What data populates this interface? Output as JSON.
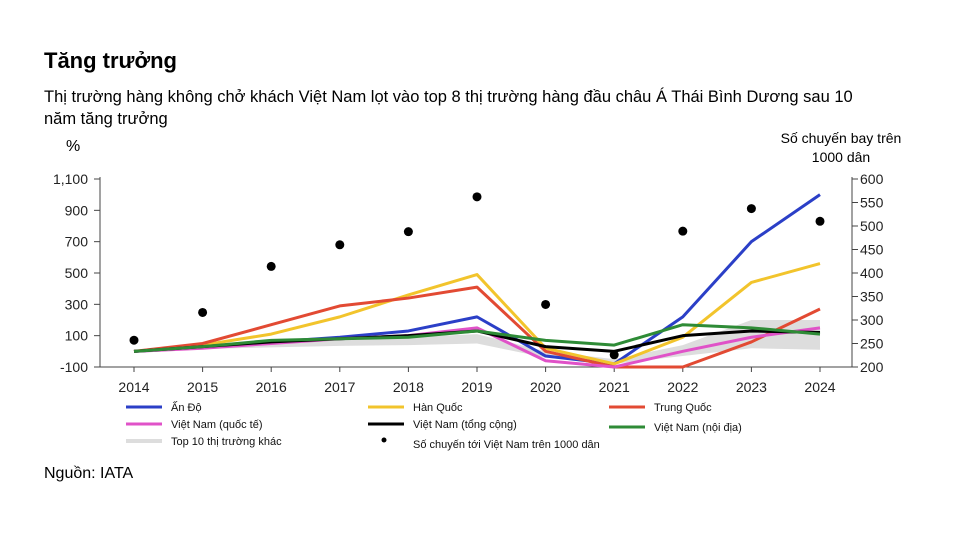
{
  "title": "Tăng trưởng",
  "subtitle": "Thị trường hàng không chở khách Việt Nam lọt vào top 8 thị trường hàng đầu châu Á Thái Bình Dương sau 10 năm tăng trưởng",
  "source": "Nguồn: IATA",
  "chart_data": {
    "type": "line",
    "ylabel_left": "%",
    "ylabel_right_line1": "Số chuyến bay trên",
    "ylabel_right_line2": "1000 dân",
    "x": [
      "2014",
      "2015",
      "2016",
      "2017",
      "2018",
      "2019",
      "2020",
      "2021",
      "2022",
      "2023",
      "2024"
    ],
    "ylim_left": [
      -100,
      1100
    ],
    "yticks_left": [
      "-100",
      "100",
      "300",
      "500",
      "700",
      "900",
      "1,100"
    ],
    "yticks_left_values": [
      -100,
      100,
      300,
      500,
      700,
      900,
      1100
    ],
    "ylim_right": [
      200,
      600
    ],
    "yticks_right": [
      "200",
      "250",
      "300",
      "350",
      "400",
      "450",
      "500",
      "550",
      "600"
    ],
    "yticks_right_values": [
      200,
      250,
      300,
      350,
      400,
      450,
      500,
      550,
      600
    ],
    "band": {
      "name": "Top 10 thị trường khác",
      "color": "#dddddd",
      "lower": [
        0,
        15,
        25,
        35,
        40,
        50,
        -40,
        -80,
        -30,
        20,
        10
      ],
      "upper": [
        10,
        40,
        60,
        75,
        90,
        110,
        0,
        -50,
        40,
        200,
        200
      ]
    },
    "series": [
      {
        "name": "Ấn Độ",
        "color": "#2b3fc7",
        "values": [
          0,
          25,
          60,
          90,
          130,
          220,
          -30,
          -80,
          220,
          700,
          1000
        ]
      },
      {
        "name": "Hàn Quốc",
        "color": "#f2c42c",
        "values": [
          0,
          40,
          110,
          220,
          360,
          490,
          20,
          -80,
          90,
          440,
          560
        ]
      },
      {
        "name": "Trung Quốc",
        "color": "#e24a33",
        "values": [
          0,
          50,
          170,
          290,
          340,
          410,
          0,
          -100,
          -100,
          60,
          270
        ]
      },
      {
        "name": "Việt Nam (quốc tế)",
        "color": "#e052c8",
        "values": [
          0,
          20,
          50,
          80,
          100,
          150,
          -60,
          -100,
          0,
          90,
          150
        ]
      },
      {
        "name": "Việt  Nam (tổng cộng)",
        "color": "#000000",
        "values": [
          0,
          30,
          60,
          80,
          100,
          130,
          30,
          0,
          100,
          130,
          120
        ]
      },
      {
        "name": "Việt Nam (nội địa)",
        "color": "#2e8b36",
        "values": [
          0,
          30,
          70,
          80,
          90,
          130,
          70,
          40,
          170,
          150,
          110
        ]
      }
    ],
    "scatter": {
      "name": "Số chuyến tới Việt Nam trên 1000 dân",
      "axis": "right",
      "color": "#000000",
      "values": [
        257,
        316,
        414,
        460,
        488,
        562,
        333,
        226,
        489,
        537,
        510
      ]
    },
    "legend_placement": "bottom",
    "grid": false
  }
}
